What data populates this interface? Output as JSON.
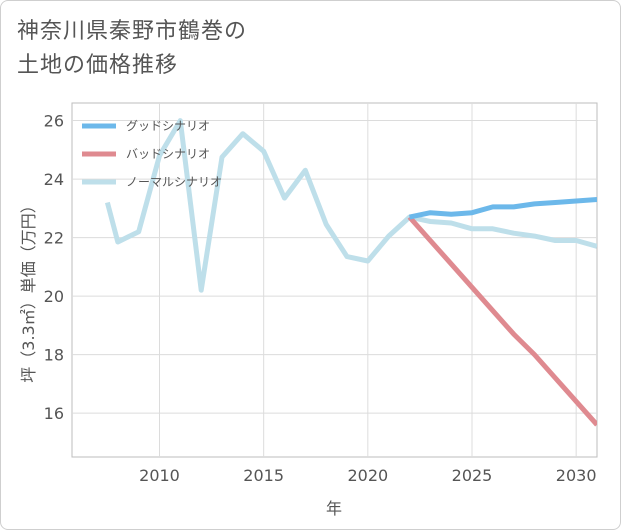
{
  "chart_data": {
    "type": "line",
    "title": "神奈川県秦野市鶴巻の\n土地の価格推移",
    "xlabel": "年",
    "ylabel": "坪（3.3㎡）単価（万円）",
    "xlim": [
      2005.8,
      2031
    ],
    "ylim": [
      14.5,
      26.6
    ],
    "xticks": [
      2010,
      2015,
      2020,
      2025,
      2030
    ],
    "yticks": [
      16,
      18,
      20,
      22,
      24,
      26
    ],
    "grid": true,
    "legend_position": "top-left",
    "series": [
      {
        "name": "グッドシナリオ",
        "color": "#6cb8ea",
        "x": [
          2022,
          2023,
          2024,
          2025,
          2026,
          2027,
          2028,
          2029,
          2030,
          2031
        ],
        "values": [
          22.7,
          22.85,
          22.8,
          22.85,
          23.05,
          23.05,
          23.15,
          23.2,
          23.25,
          23.3
        ]
      },
      {
        "name": "バッドシナリオ",
        "color": "#df8a90",
        "x": [
          2022,
          2023,
          2024,
          2025,
          2026,
          2027,
          2028,
          2029,
          2030,
          2031
        ],
        "values": [
          22.7,
          21.9,
          21.1,
          20.3,
          19.5,
          18.7,
          18.0,
          17.2,
          16.4,
          15.6
        ]
      },
      {
        "name": "ノーマルシナリオ",
        "color": "#bedfea",
        "x": [
          2007.5,
          2008,
          2009,
          2010,
          2011,
          2012,
          2013,
          2014,
          2015,
          2016,
          2017,
          2018,
          2019,
          2020,
          2021,
          2022,
          2023,
          2024,
          2025,
          2026,
          2027,
          2028,
          2029,
          2030,
          2031
        ],
        "values": [
          23.2,
          21.85,
          22.2,
          24.8,
          26.0,
          20.2,
          24.75,
          25.55,
          24.95,
          23.35,
          24.3,
          22.45,
          21.35,
          21.2,
          22.05,
          22.7,
          22.55,
          22.5,
          22.3,
          22.3,
          22.15,
          22.05,
          21.9,
          21.9,
          21.7
        ]
      }
    ]
  }
}
